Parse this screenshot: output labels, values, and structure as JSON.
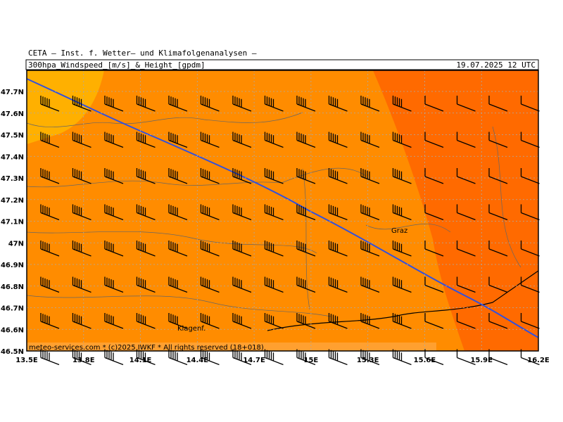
{
  "header": {
    "institute": "CETA — Inst. f. Wetter— und Klimafolgenanalysen —",
    "product": "300hpa_Windspeed_[m/s]_&_Height_[gpdm]",
    "valid": "19.07.2025 12 UTC"
  },
  "map": {
    "x_labels": [
      "13.5E",
      "13.8E",
      "14.1E",
      "14.4E",
      "14.7E",
      "15E",
      "15.3E",
      "15.6E",
      "15.9E",
      "16.2E"
    ],
    "y_labels": [
      "47.7N",
      "47.6N",
      "47.5N",
      "47.4N",
      "47.3N",
      "47.2N",
      "47.1N",
      "47N",
      "46.9N",
      "46.8N",
      "46.7N",
      "46.6N",
      "46.5N"
    ],
    "places": [
      "Graz",
      "Klagenf."
    ],
    "credit": "meteo-services.com * (c)2025 IWKF * All rights reserved (18+018)"
  }
}
